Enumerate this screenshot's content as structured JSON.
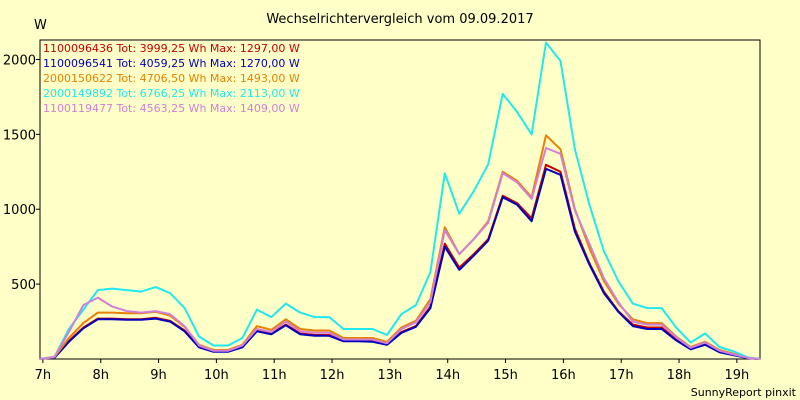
{
  "chart_data": {
    "type": "line",
    "title": "Wechselrichtervergleich vom 09.09.2017",
    "ylabel": "W",
    "xlabel": "",
    "footer": "SunnyReport pinxit",
    "x_range_hours": [
      6.95,
      19.4
    ],
    "ylim": [
      0,
      2130
    ],
    "x_tick_values": [
      7,
      8,
      9,
      10,
      11,
      12,
      13,
      14,
      15,
      16,
      17,
      18,
      19
    ],
    "x_tick_labels": [
      "7h",
      "8h",
      "9h",
      "10h",
      "11h",
      "12h",
      "13h",
      "14h",
      "15h",
      "16h",
      "17h",
      "18h",
      "19h"
    ],
    "y_tick_values": [
      500,
      1000,
      1500,
      2000
    ],
    "y_tick_labels": [
      "500",
      "1000",
      "1500",
      "2000"
    ],
    "grid": true,
    "x": [
      6.95,
      7.2,
      7.45,
      7.7,
      7.95,
      8.2,
      8.45,
      8.7,
      8.95,
      9.2,
      9.45,
      9.7,
      9.95,
      10.2,
      10.45,
      10.7,
      10.95,
      11.2,
      11.45,
      11.7,
      11.95,
      12.2,
      12.45,
      12.7,
      12.95,
      13.2,
      13.45,
      13.7,
      13.95,
      14.2,
      14.45,
      14.7,
      14.95,
      15.2,
      15.45,
      15.7,
      15.95,
      16.2,
      16.45,
      16.7,
      16.95,
      17.2,
      17.45,
      17.7,
      17.95,
      18.2,
      18.45,
      18.7,
      18.95,
      19.2,
      19.4
    ],
    "series": [
      {
        "name": "1100096436",
        "legend": "1100096436 Tot: 3999,25 Wh Max: 1297,00 W",
        "color": "#c80000",
        "values": [
          0,
          10,
          120,
          210,
          270,
          270,
          265,
          265,
          275,
          255,
          190,
          80,
          50,
          50,
          80,
          190,
          170,
          230,
          170,
          160,
          160,
          120,
          120,
          120,
          100,
          180,
          220,
          350,
          770,
          610,
          700,
          800,
          1090,
          1040,
          940,
          1297,
          1250,
          870,
          640,
          450,
          320,
          230,
          210,
          210,
          130,
          70,
          100,
          50,
          30,
          5,
          0
        ]
      },
      {
        "name": "1100096541",
        "legend": "1100096541 Tot: 4059,25 Wh Max: 1270,00 W",
        "color": "#0000c0",
        "values": [
          0,
          8,
          115,
          205,
          265,
          265,
          262,
          262,
          270,
          250,
          185,
          78,
          48,
          48,
          78,
          185,
          165,
          225,
          165,
          155,
          155,
          118,
          118,
          115,
          95,
          175,
          215,
          340,
          750,
          595,
          690,
          790,
          1080,
          1030,
          920,
          1270,
          1230,
          850,
          630,
          440,
          315,
          220,
          200,
          200,
          125,
          65,
          95,
          45,
          25,
          5,
          0
        ]
      },
      {
        "name": "2000150622",
        "legend": "2000150622 Tot: 4706,50 Wh Max: 1493,00 W",
        "color": "#e88000",
        "values": [
          0,
          12,
          140,
          240,
          310,
          310,
          305,
          305,
          315,
          290,
          215,
          95,
          60,
          60,
          95,
          220,
          195,
          265,
          200,
          190,
          190,
          140,
          140,
          140,
          115,
          210,
          255,
          400,
          880,
          700,
          800,
          920,
          1250,
          1190,
          1080,
          1493,
          1400,
          1000,
          740,
          520,
          370,
          265,
          240,
          240,
          150,
          80,
          115,
          60,
          35,
          8,
          0
        ]
      },
      {
        "name": "2000149892",
        "legend": "2000149892 Tot: 6766,25 Wh Max: 2113,00 W",
        "color": "#20e8f0",
        "values": [
          0,
          15,
          200,
          330,
          460,
          470,
          460,
          450,
          480,
          440,
          340,
          150,
          90,
          90,
          140,
          330,
          280,
          370,
          310,
          280,
          280,
          200,
          200,
          200,
          160,
          300,
          360,
          580,
          1240,
          970,
          1120,
          1300,
          1770,
          1650,
          1500,
          2113,
          1990,
          1400,
          1030,
          720,
          520,
          370,
          340,
          340,
          210,
          110,
          170,
          80,
          50,
          10,
          0
        ]
      },
      {
        "name": "1100119477",
        "legend": "1100119477 Tot: 4563,25 Wh Max: 1409,00 W",
        "color": "#d080d8",
        "values": [
          0,
          14,
          180,
          360,
          410,
          350,
          320,
          310,
          320,
          300,
          220,
          90,
          55,
          55,
          90,
          200,
          180,
          250,
          185,
          175,
          175,
          130,
          130,
          130,
          105,
          200,
          245,
          380,
          860,
          700,
          800,
          910,
          1240,
          1180,
          1070,
          1409,
          1370,
          990,
          770,
          540,
          380,
          250,
          230,
          230,
          145,
          75,
          110,
          55,
          30,
          7,
          0
        ]
      }
    ]
  }
}
